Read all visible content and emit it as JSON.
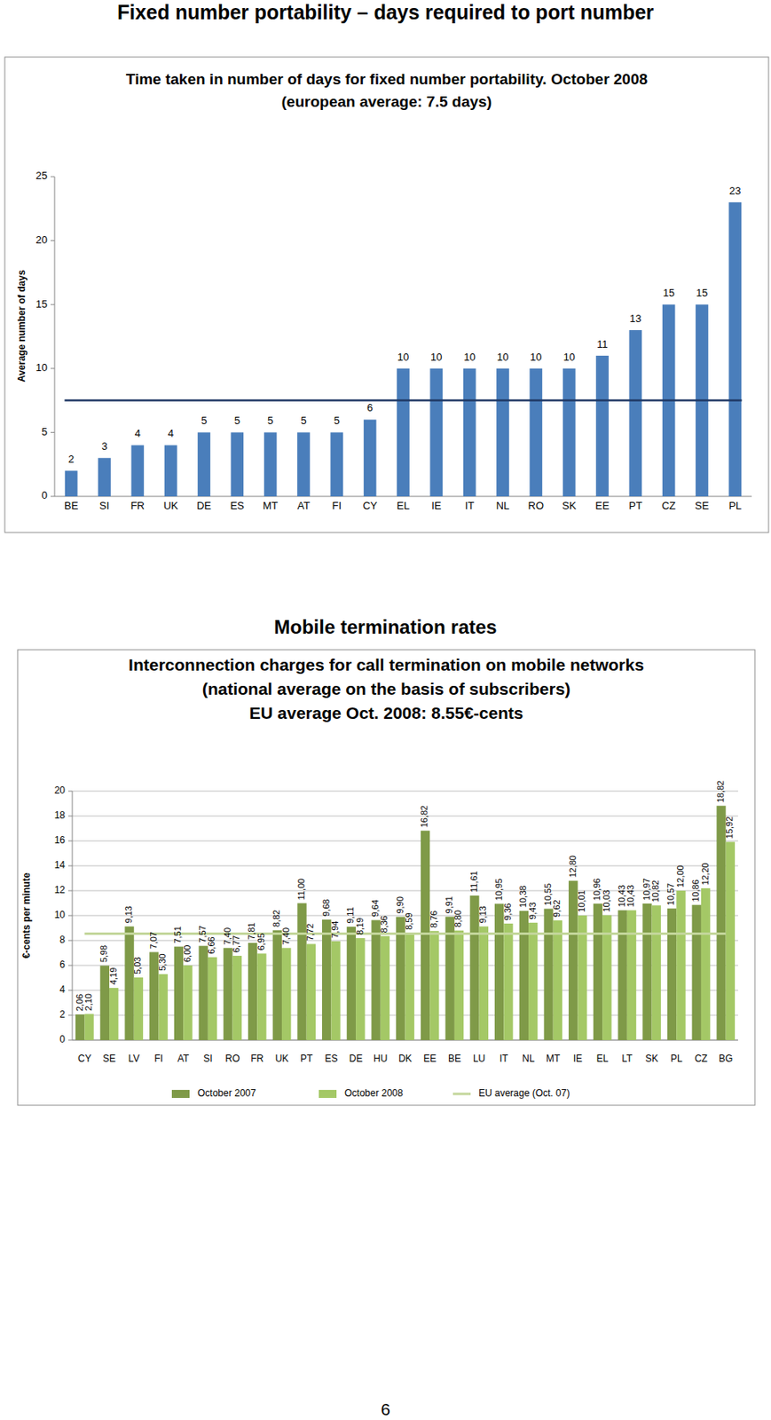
{
  "chart_data": [
    {
      "type": "bar",
      "title": "Fixed number portability – days required to port number",
      "subtitle": [
        "Time taken in number of days for fixed number portability. October 2008",
        "(european average: 7.5 days)"
      ],
      "y_label": "Average number of days",
      "categories": [
        "BE",
        "SI",
        "FR",
        "UK",
        "DE",
        "ES",
        "MT",
        "AT",
        "FI",
        "CY",
        "EL",
        "IE",
        "IT",
        "NL",
        "RO",
        "SK",
        "EE",
        "PT",
        "CZ",
        "SE",
        "PL"
      ],
      "values": [
        2,
        3,
        4,
        4,
        5,
        5,
        5,
        5,
        5,
        6,
        10,
        10,
        10,
        10,
        10,
        10,
        11,
        13,
        15,
        15,
        23
      ],
      "color": "#4a7ebb",
      "ylim": [
        0,
        25
      ],
      "yticks": [
        0,
        5,
        10,
        15,
        20,
        25
      ],
      "grid": false,
      "data_labels": true,
      "average_line": {
        "value": 7.5,
        "color": "#1f3864"
      }
    },
    {
      "type": "bar",
      "title": "Mobile termination rates",
      "subtitle": [
        "Interconnection charges for call termination on mobile networks",
        "(national average on the basis of subscribers)",
        "EU average Oct. 2008:  8.55€-cents"
      ],
      "y_label": "€-cents per minute",
      "categories": [
        "CY",
        "SE",
        "LV",
        "FI",
        "AT",
        "SI",
        "RO",
        "FR",
        "UK",
        "PT",
        "ES",
        "DE",
        "HU",
        "DK",
        "EE",
        "BE",
        "LU",
        "IT",
        "NL",
        "MT",
        "IE",
        "EL",
        "LT",
        "SK",
        "PL",
        "CZ",
        "BG"
      ],
      "series": [
        {
          "name": "October 2007",
          "color": "#7f9a48",
          "values": [
            2.06,
            5.98,
            9.13,
            7.07,
            7.51,
            7.57,
            7.4,
            7.81,
            8.82,
            11.0,
            9.68,
            9.11,
            9.64,
            9.9,
            16.82,
            9.91,
            11.61,
            10.95,
            10.38,
            10.55,
            12.8,
            10.96,
            10.43,
            10.97,
            10.57,
            10.86,
            18.82
          ],
          "value_labels": [
            "2,06",
            "5,98",
            "9,13",
            "7,07",
            "7,51",
            "7,57",
            "7,40",
            "7,81",
            "8,82",
            "11,00",
            "9,68",
            "9,11",
            "9,64",
            "9,90",
            "16,82",
            "9,91",
            "11,61",
            "10,95",
            "10,38",
            "10,55",
            "12,80",
            "10,96",
            "10,43",
            "10,97",
            "10,57",
            "10,86",
            "18,82"
          ]
        },
        {
          "name": "October 2008",
          "color": "#a4c866",
          "values": [
            2.1,
            4.19,
            5.03,
            5.3,
            6.0,
            6.66,
            6.77,
            6.95,
            7.4,
            7.72,
            7.94,
            8.19,
            8.36,
            8.59,
            8.76,
            8.8,
            9.13,
            9.36,
            9.43,
            9.62,
            10.01,
            10.03,
            10.43,
            10.82,
            12.0,
            12.2,
            15.92
          ],
          "value_labels": [
            "2,10",
            "4,19",
            "5,03",
            "5,30",
            "6,00",
            "6,66",
            "6,77",
            "6,95",
            "7,40",
            "7,72",
            "7,94",
            "8,19",
            "8,36",
            "8,59",
            "8,76",
            "8,80",
            "9,13",
            "9,36",
            "9,43",
            "9,62",
            "10,01",
            "10,03",
            "10,43",
            "10,82",
            "12,00",
            "12,20",
            "15,92"
          ]
        }
      ],
      "ylim": [
        0,
        20
      ],
      "yticks": [
        0,
        2,
        4,
        6,
        8,
        10,
        12,
        14,
        16,
        18,
        20
      ],
      "grid": true,
      "data_labels": true,
      "legend": "bottom",
      "average_line": {
        "name": "EU average (Oct. 07)",
        "value": 8.55,
        "color": "#c3d69b"
      }
    }
  ],
  "page": {
    "number": "6"
  }
}
